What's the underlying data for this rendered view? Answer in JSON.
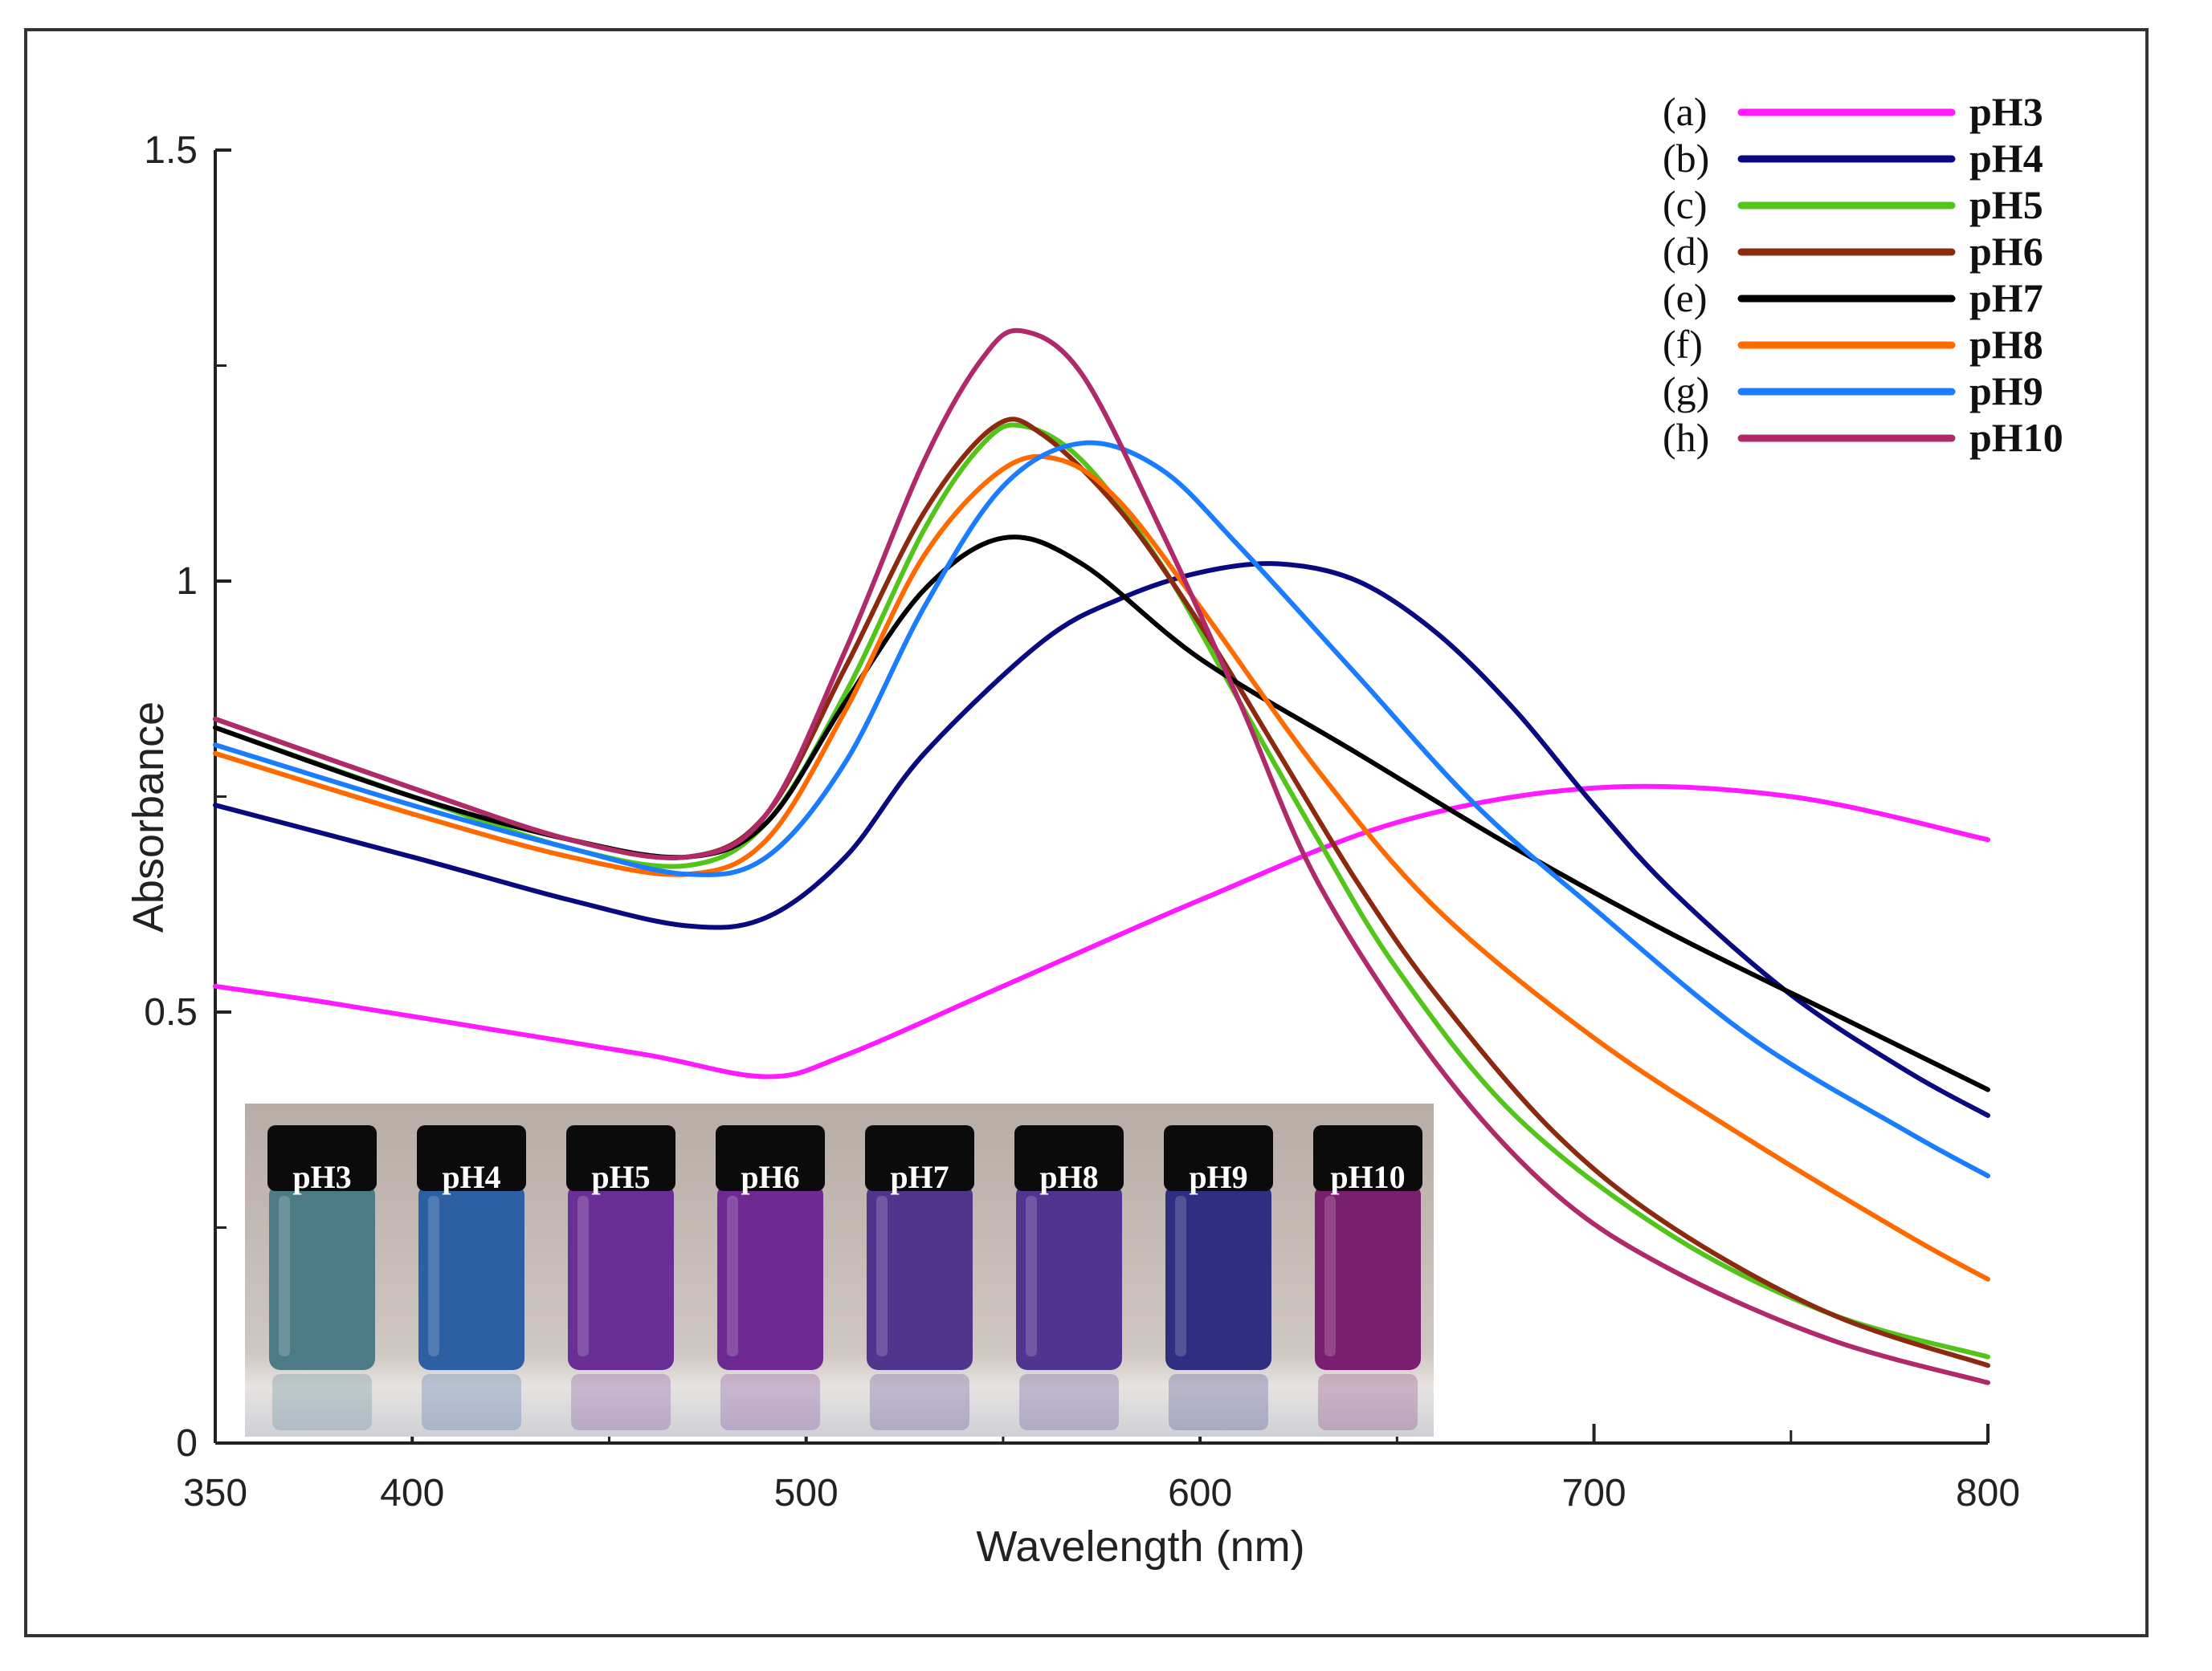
{
  "chart_data": {
    "type": "line",
    "title": "",
    "xlabel": "Wavelength (nm)",
    "ylabel": "Absorbance",
    "xlim": [
      350,
      800
    ],
    "ylim": [
      0,
      1.5
    ],
    "x_ticks": [
      350,
      400,
      500,
      600,
      700,
      800
    ],
    "x_minor_ticks": [
      450,
      550,
      650,
      750
    ],
    "y_ticks": [
      {
        "value": 0,
        "label": "0"
      },
      {
        "value": 0.5,
        "label": "0.5"
      },
      {
        "value": 1,
        "label": "1"
      },
      {
        "value": 1.5,
        "label": "1.5"
      }
    ],
    "y_minor_ticks": [
      0.25,
      0.75,
      1.25
    ],
    "grid": false,
    "legend_position": "top-right",
    "series": [
      {
        "letter": "(a)",
        "name": "pH3",
        "color": "#ff1aff",
        "x": [
          350,
          380,
          420,
          460,
          490,
          510,
          550,
          600,
          650,
          700,
          750,
          800
        ],
        "y": [
          0.53,
          0.51,
          0.48,
          0.45,
          0.425,
          0.45,
          0.53,
          0.63,
          0.72,
          0.76,
          0.75,
          0.7
        ]
      },
      {
        "letter": "(b)",
        "name": "pH4",
        "color": "#0a0a80",
        "x": [
          350,
          400,
          440,
          470,
          490,
          510,
          530,
          560,
          580,
          600,
          620,
          640,
          660,
          680,
          700,
          720,
          750,
          780,
          800
        ],
        "y": [
          0.74,
          0.68,
          0.63,
          0.6,
          0.61,
          0.68,
          0.8,
          0.93,
          0.98,
          1.01,
          1.02,
          1.0,
          0.94,
          0.85,
          0.74,
          0.64,
          0.52,
          0.43,
          0.38
        ]
      },
      {
        "letter": "(c)",
        "name": "pH5",
        "color": "#52c41a",
        "x": [
          350,
          400,
          440,
          470,
          490,
          510,
          530,
          545,
          555,
          570,
          590,
          610,
          630,
          650,
          680,
          720,
          760,
          800
        ],
        "y": [
          0.83,
          0.75,
          0.69,
          0.67,
          0.72,
          0.87,
          1.06,
          1.16,
          1.18,
          1.14,
          1.02,
          0.86,
          0.7,
          0.55,
          0.38,
          0.24,
          0.15,
          0.1
        ]
      },
      {
        "letter": "(d)",
        "name": "pH6",
        "color": "#8b2a10",
        "x": [
          350,
          400,
          440,
          470,
          490,
          510,
          530,
          548,
          560,
          580,
          600,
          620,
          640,
          660,
          690,
          720,
          760,
          800
        ],
        "y": [
          0.84,
          0.76,
          0.7,
          0.68,
          0.73,
          0.9,
          1.08,
          1.18,
          1.17,
          1.08,
          0.95,
          0.8,
          0.65,
          0.52,
          0.36,
          0.25,
          0.15,
          0.09
        ]
      },
      {
        "letter": "(e)",
        "name": "pH7",
        "color": "#000000",
        "x": [
          350,
          400,
          440,
          470,
          490,
          510,
          530,
          550,
          570,
          600,
          640,
          680,
          720,
          760,
          800
        ],
        "y": [
          0.83,
          0.75,
          0.7,
          0.68,
          0.72,
          0.86,
          0.99,
          1.05,
          1.02,
          0.91,
          0.8,
          0.69,
          0.59,
          0.5,
          0.41
        ]
      },
      {
        "letter": "(f)",
        "name": "pH8",
        "color": "#ff6a00",
        "x": [
          350,
          400,
          440,
          470,
          490,
          510,
          530,
          550,
          565,
          580,
          600,
          630,
          660,
          700,
          740,
          780,
          800
        ],
        "y": [
          0.8,
          0.73,
          0.68,
          0.66,
          0.7,
          0.85,
          1.03,
          1.13,
          1.14,
          1.09,
          0.97,
          0.78,
          0.62,
          0.47,
          0.35,
          0.24,
          0.19
        ]
      },
      {
        "letter": "(g)",
        "name": "pH9",
        "color": "#1a7dff",
        "x": [
          350,
          400,
          440,
          470,
          490,
          510,
          530,
          550,
          570,
          590,
          610,
          640,
          670,
          700,
          740,
          780,
          800
        ],
        "y": [
          0.81,
          0.74,
          0.69,
          0.66,
          0.68,
          0.79,
          0.97,
          1.11,
          1.16,
          1.13,
          1.04,
          0.89,
          0.74,
          0.62,
          0.47,
          0.36,
          0.31
        ]
      },
      {
        "letter": "(h)",
        "name": "pH10",
        "color": "#b02a6a",
        "x": [
          350,
          400,
          440,
          470,
          490,
          510,
          530,
          545,
          555,
          570,
          590,
          610,
          630,
          660,
          690,
          720,
          760,
          800
        ],
        "y": [
          0.84,
          0.76,
          0.7,
          0.68,
          0.73,
          0.92,
          1.14,
          1.26,
          1.29,
          1.24,
          1.06,
          0.86,
          0.65,
          0.44,
          0.29,
          0.2,
          0.12,
          0.07
        ]
      }
    ]
  },
  "inset": {
    "vials": [
      {
        "label": "pH3",
        "color": "#4c7b86"
      },
      {
        "label": "pH4",
        "color": "#2c5fa3"
      },
      {
        "label": "pH5",
        "color": "#6a2f96"
      },
      {
        "label": "pH6",
        "color": "#6e2a92"
      },
      {
        "label": "pH7",
        "color": "#50358f"
      },
      {
        "label": "pH8",
        "color": "#503590"
      },
      {
        "label": "pH9",
        "color": "#2e2e82"
      },
      {
        "label": "pH10",
        "color": "#7a1f70"
      }
    ]
  }
}
